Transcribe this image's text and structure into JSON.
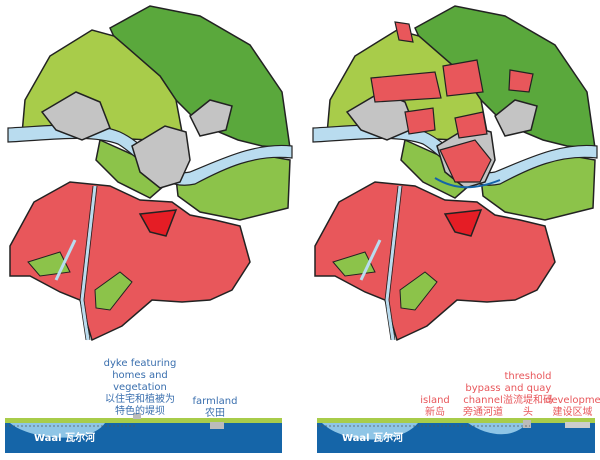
{
  "colors": {
    "dark_green": "#5aa83c",
    "light_green": "#a8cc4a",
    "mid_green": "#8cc34a",
    "river": "#b9dcef",
    "urban_red": "#e8575b",
    "existing_grey": "#c4c4c4",
    "deep_water": "#1565a8",
    "label_blue": "#3a6fae",
    "label_red": "#e8575b"
  },
  "left_panel": {
    "labels": {
      "dyke_en": "dyke featuring homes and vegetation",
      "dyke_zh": "以住宅和植被为特色的堤坝",
      "farmland_en": "farmland",
      "farmland_zh": "农田"
    },
    "river_label": "Waal 瓦尔河"
  },
  "right_panel": {
    "labels": {
      "island_en": "island",
      "island_zh": "新岛",
      "bypass_en": "bypass channel",
      "bypass_zh": "旁通河道",
      "threshold_en": "threshold and quay",
      "threshold_zh": "溢流堤和码头",
      "development_en": "development",
      "development_zh": "建设区域"
    },
    "river_label": "Waal 瓦尔河"
  }
}
